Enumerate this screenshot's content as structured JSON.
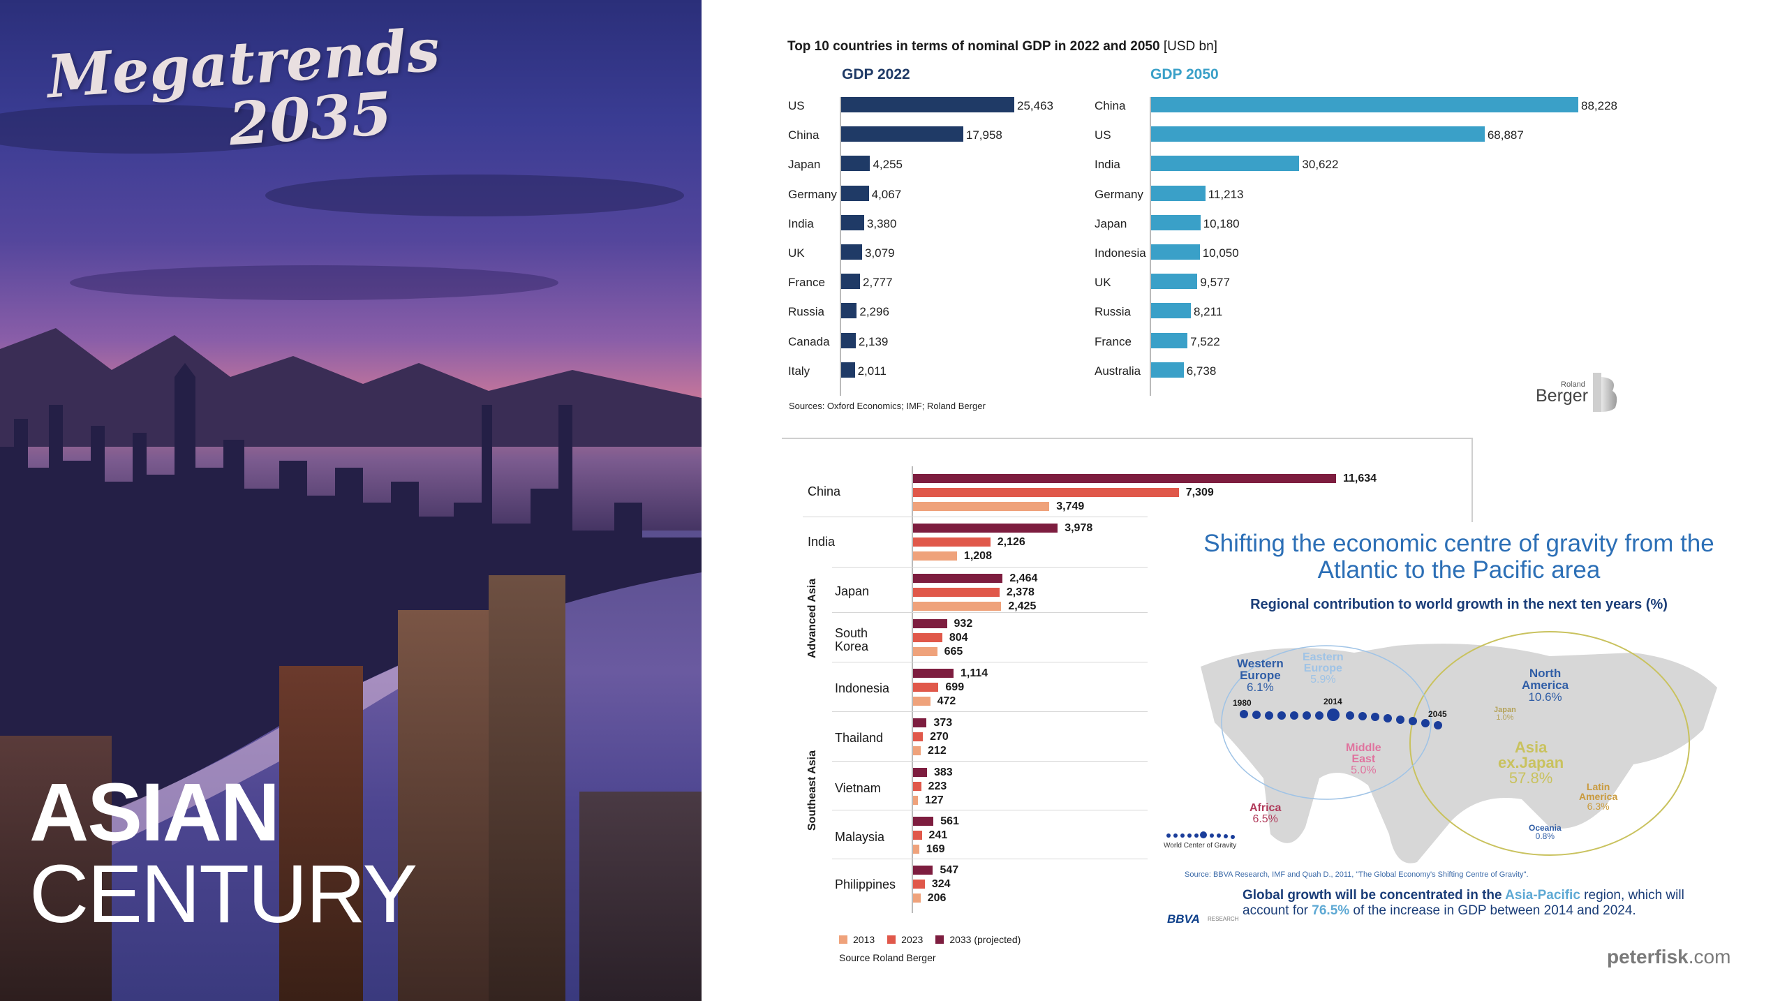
{
  "left_panel": {
    "title_line1": "Megatrends",
    "title_line2": "2035",
    "headline_line1": "ASIAN",
    "headline_line2": "CENTURY"
  },
  "top_chart": {
    "title": "Top 10 countries in terms of nominal GDP in 2022 and 2050",
    "unit": "[USD bn]",
    "sources": "Sources: Oxford Economics; IMF; Roland Berger",
    "logo_small": "Roland",
    "logo_big": "Berger"
  },
  "bottom_chart": {
    "group_advanced": "Advanced Asia",
    "group_southeast": "Southeast Asia",
    "source": "Source Roland Berger"
  },
  "map_panel": {
    "title": "Shifting the economic centre of gravity from the Atlantic to the Pacific area",
    "subtitle": "Regional contribution to world growth in the next ten years (%)",
    "regions": [
      {
        "name": "Western Europe",
        "value": "6.1%",
        "color": "#2f5da6"
      },
      {
        "name": "Eastern Europe",
        "value": "5.9%",
        "color": "#9fc3e6"
      },
      {
        "name": "North America",
        "value": "10.6%",
        "color": "#2f5da6"
      },
      {
        "name": "Japan",
        "value": "1.0%",
        "color": "#b5a35a"
      },
      {
        "name": "Asia ex.Japan",
        "value": "57.8%",
        "color": "#c9c25e"
      },
      {
        "name": "Middle East",
        "value": "5.0%",
        "color": "#e0739e"
      },
      {
        "name": "Latin America",
        "value": "6.3%",
        "color": "#c99a3d"
      },
      {
        "name": "Africa",
        "value": "6.5%",
        "color": "#b03a5a"
      },
      {
        "name": "Oceania",
        "value": "0.8%",
        "color": "#2f5da6"
      }
    ],
    "years": [
      "1980",
      "2014",
      "2045"
    ],
    "gravity_label": "World Center of Gravity",
    "source": "Source: BBVA Research, IMF and Quah D., 2011, \"The Global Economy's Shifting Centre of Gravity\".",
    "footer_a": "Global growth will be concentrated in the ",
    "footer_b": "Asia-Pacific",
    "footer_c": " region, which will account for ",
    "footer_d": "76.5%",
    "footer_e": " of the increase in GDP between 2014 and 2024.",
    "logo": "BBVA",
    "logo_sub": "RESEARCH"
  },
  "watermark": {
    "a": "peterfisk",
    "b": ".com"
  },
  "chart_data": [
    {
      "type": "bar",
      "orientation": "horizontal",
      "title": "GDP 2022",
      "categories": [
        "US",
        "China",
        "Japan",
        "Germany",
        "India",
        "UK",
        "France",
        "Russia",
        "Canada",
        "Italy"
      ],
      "values": [
        25463,
        17958,
        4255,
        4067,
        3380,
        3079,
        2777,
        2296,
        2139,
        2011
      ],
      "labels": [
        "25,463",
        "17,958",
        "4,255",
        "4,067",
        "3,380",
        "3,079",
        "2,777",
        "2,296",
        "2,139",
        "2,011"
      ],
      "color": "#1f3a66"
    },
    {
      "type": "bar",
      "orientation": "horizontal",
      "title": "GDP 2050",
      "categories": [
        "China",
        "US",
        "India",
        "Germany",
        "Japan",
        "Indonesia",
        "UK",
        "Russia",
        "France",
        "Australia"
      ],
      "values": [
        88228,
        68887,
        30622,
        11213,
        10180,
        10050,
        9577,
        8211,
        7522,
        6738
      ],
      "labels": [
        "88,228",
        "68,887",
        "30,622",
        "11,213",
        "10,180",
        "10,050",
        "9,577",
        "8,211",
        "7,522",
        "6,738"
      ],
      "color": "#3aa0c8"
    },
    {
      "type": "bar",
      "orientation": "horizontal",
      "categories": [
        "China",
        "India",
        "Japan",
        "South Korea",
        "Indonesia",
        "Thailand",
        "Vietnam",
        "Malaysia",
        "Philippines"
      ],
      "series": [
        {
          "name": "2033 (projected)",
          "color": "#7d1d3f",
          "values": [
            11634,
            3978,
            2464,
            932,
            1114,
            373,
            383,
            561,
            547
          ],
          "labels": [
            "11,634",
            "3,978",
            "2,464",
            "932",
            "1,114",
            "373",
            "383",
            "561",
            "547"
          ]
        },
        {
          "name": "2023",
          "color": "#e0584a",
          "values": [
            7309,
            2126,
            2378,
            804,
            699,
            270,
            223,
            241,
            324
          ],
          "labels": [
            "7,309",
            "2,126",
            "2,378",
            "804",
            "699",
            "270",
            "223",
            "241",
            "324"
          ]
        },
        {
          "name": "2013",
          "color": "#efa27b",
          "values": [
            3749,
            1208,
            2425,
            665,
            472,
            212,
            127,
            169,
            206
          ],
          "labels": [
            "3,749",
            "1,208",
            "2,425",
            "665",
            "472",
            "212",
            "127",
            "169",
            "206"
          ]
        }
      ],
      "legend": [
        "2013",
        "2023",
        "2033 (projected)"
      ]
    }
  ]
}
